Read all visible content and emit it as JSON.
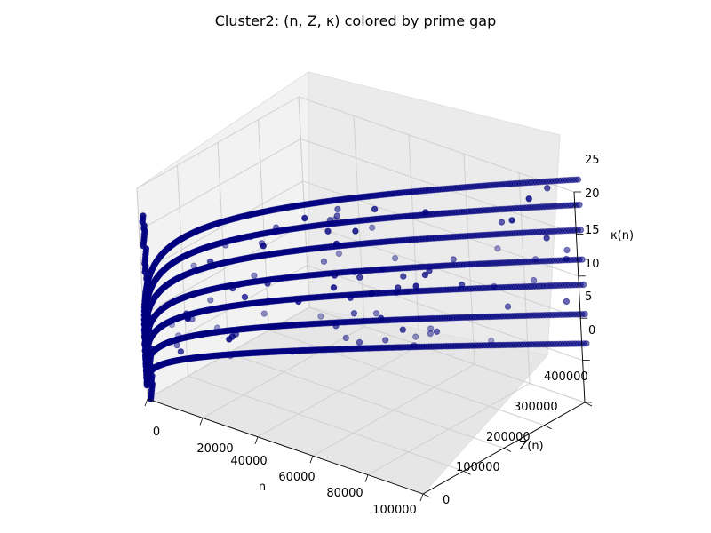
{
  "chart_data": {
    "type": "scatter",
    "projection": "3d",
    "title": "Cluster2: (n, Z, κ) colored by prime gap",
    "xlabel": "n",
    "ylabel": "Z(n)",
    "zlabel": "κ(n)",
    "xlim": [
      0,
      100000
    ],
    "ylim": [
      0,
      400000
    ],
    "zlim": [
      0,
      25
    ],
    "x_ticks": [
      "0",
      "20000",
      "40000",
      "60000",
      "80000",
      "100000"
    ],
    "y_ticks": [
      "0",
      "100000",
      "200000",
      "300000",
      "400000"
    ],
    "z_ticks": [
      "0",
      "5",
      "10",
      "15",
      "20",
      "25"
    ],
    "grid": true,
    "marker_color": "#00007f",
    "pane_color": "#f2f2f2",
    "series_description": [
      {
        "band": 1,
        "kappa_at_x_max": 6.5,
        "z_to_x_ratio": 4.4
      },
      {
        "band": 2,
        "kappa_at_x_max": 10,
        "z_to_x_ratio": 4.4
      },
      {
        "band": 3,
        "kappa_at_x_max": 13.5,
        "z_to_x_ratio": 4.4
      },
      {
        "band": 4,
        "kappa_at_x_max": 16.5,
        "z_to_x_ratio": 4.4
      },
      {
        "band": 5,
        "kappa_at_x_max": 20,
        "z_to_x_ratio": 4.4
      },
      {
        "band": 6,
        "kappa_at_x_max": 23,
        "z_to_x_ratio": 4.4
      },
      {
        "band": 7,
        "kappa_at_x_max": 26,
        "z_to_x_ratio": 4.4
      }
    ]
  }
}
